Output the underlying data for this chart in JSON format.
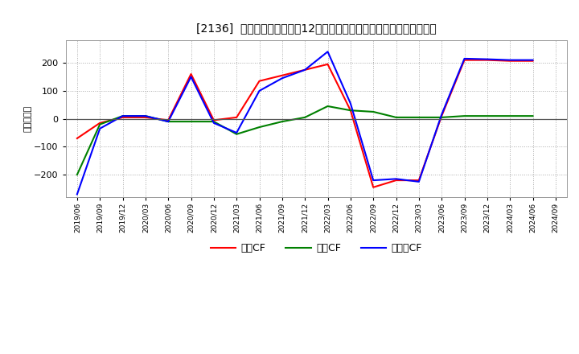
{
  "title": "[2136]  キャッシュフローの12か月移動合計の対前年同期増減額の推移",
  "ylabel": "（百万円）",
  "background_color": "#ffffff",
  "plot_bg_color": "#ffffff",
  "grid_color": "#aaaaaa",
  "x_labels": [
    "2019/06",
    "2019/09",
    "2019/12",
    "2020/03",
    "2020/06",
    "2020/09",
    "2020/12",
    "2021/03",
    "2021/06",
    "2021/09",
    "2021/12",
    "2022/03",
    "2022/06",
    "2022/09",
    "2022/12",
    "2023/03",
    "2023/06",
    "2023/09",
    "2023/12",
    "2024/03",
    "2024/06",
    "2024/09"
  ],
  "eigyo_cf": [
    -70,
    -15,
    5,
    5,
    -5,
    160,
    -5,
    5,
    135,
    155,
    175,
    195,
    30,
    -245,
    -220,
    -220,
    10,
    210,
    210,
    207,
    207,
    null
  ],
  "toshi_cf": [
    -200,
    -20,
    10,
    10,
    -10,
    -10,
    -10,
    -55,
    -30,
    -10,
    5,
    45,
    30,
    25,
    5,
    5,
    5,
    10,
    10,
    10,
    10,
    null
  ],
  "free_cf": [
    -270,
    -35,
    10,
    10,
    -10,
    150,
    -15,
    -50,
    100,
    145,
    175,
    240,
    55,
    -220,
    -215,
    -225,
    15,
    215,
    213,
    210,
    210,
    null
  ],
  "ylim": [
    -280,
    280
  ],
  "yticks": [
    -200,
    -100,
    0,
    100,
    200
  ],
  "eigyo_color": "#ff0000",
  "toshi_color": "#008000",
  "free_color": "#0000ff",
  "legend_labels": [
    "営業CF",
    "投資CF",
    "フリーCF"
  ],
  "line_width": 1.5
}
